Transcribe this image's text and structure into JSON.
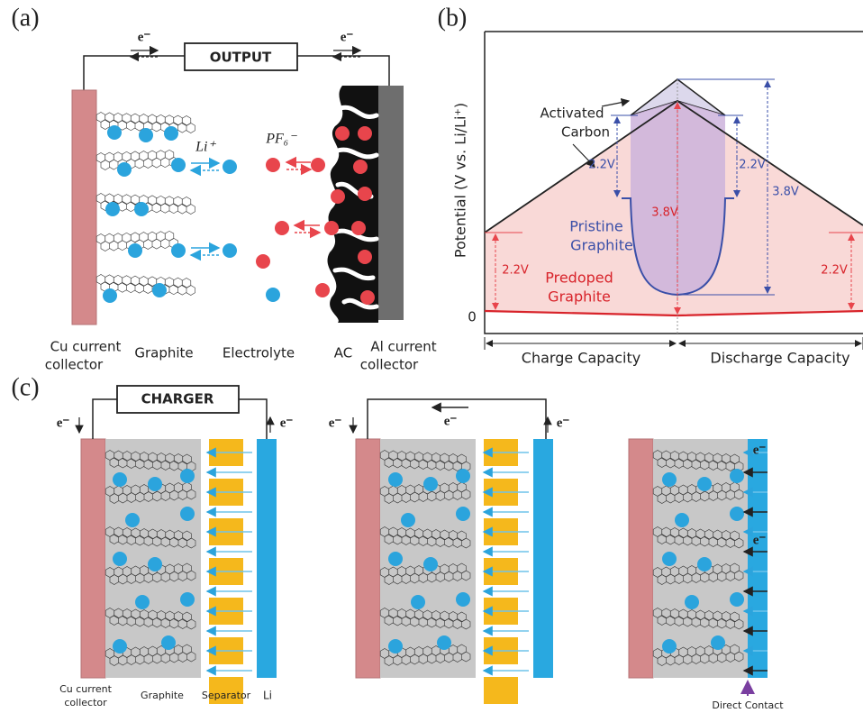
{
  "panel_a": {
    "label": "(a)",
    "output": "OUTPUT",
    "electron_labels": [
      "e⁻",
      "e⁻"
    ],
    "ion_li": "Li⁺",
    "ion_pf6": "PF₆⁻",
    "labels": {
      "cu_collector": [
        "Cu current",
        "collector"
      ],
      "graphite": "Graphite",
      "electrolyte": "Electrolyte",
      "ac": "AC",
      "al_collector": [
        "Al current",
        "collector"
      ]
    }
  },
  "panel_b": {
    "label": "(b)",
    "y_axis": "Potential (V vs. Li/Li⁺)",
    "zero": "0",
    "activated_carbon": [
      "Activated",
      "Carbon"
    ],
    "pristine_graphite": [
      "Pristine",
      "Graphite"
    ],
    "predoped_graphite": [
      "Predoped",
      "Graphite"
    ],
    "voltages": [
      "2.2V",
      "2.2V",
      "3.8V",
      "3.8V",
      "2.2V",
      "2.2V"
    ],
    "charge": "Charge Capacity",
    "discharge": "Discharge Capacity"
  },
  "panel_c": {
    "label": "(c)",
    "charger": "CHARGER",
    "electron_labels": [
      "e⁻",
      "e⁻",
      "e⁻",
      "e⁻",
      "e⁻",
      "e⁻",
      "e⁻"
    ],
    "labels": {
      "cu_collector": [
        "Cu current",
        "collector"
      ],
      "graphite": "Graphite",
      "separator": "Separator",
      "li": "Li",
      "direct_contact": "Direct Contact"
    }
  }
}
